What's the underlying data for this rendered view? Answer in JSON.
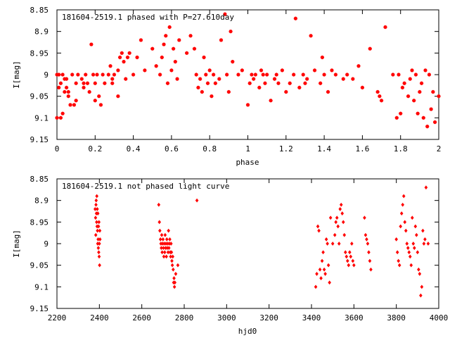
{
  "chart_data": [
    {
      "type": "scatter",
      "title": "181604-2519.1 phased with P=27.610day",
      "xlabel": "phase",
      "ylabel": "I[mag]",
      "xlim": [
        0,
        2
      ],
      "ylim": [
        8.85,
        9.15
      ],
      "y_inverted": true,
      "xticks": [
        "0",
        "0.2",
        "0.4",
        "0.6",
        "0.8",
        "1",
        "1.2",
        "1.4",
        "1.6",
        "1.8",
        "2"
      ],
      "yticks": [
        "8.85",
        "8.9",
        "8.95",
        "9",
        "9.05",
        "9.1",
        "9.15"
      ],
      "marker": "asterisk",
      "color": "#ff0000",
      "series": [
        {
          "x": [
            0.0,
            0.0,
            0.01,
            0.01,
            0.02,
            0.02,
            0.03,
            0.03,
            0.04,
            0.04,
            0.05,
            0.05,
            0.06,
            0.06,
            0.07,
            0.08,
            0.09,
            0.1,
            0.1,
            0.11,
            0.13,
            0.14,
            0.14,
            0.15,
            0.16,
            0.17,
            0.18,
            0.19,
            0.2,
            0.2,
            0.21,
            0.22,
            0.23,
            0.24,
            0.25,
            0.27,
            0.28,
            0.29,
            0.29,
            0.3,
            0.32,
            0.32,
            0.33,
            0.34,
            0.35,
            0.36,
            0.37,
            0.38,
            0.4,
            0.42,
            0.44,
            0.46,
            0.5,
            0.52,
            0.54,
            0.55,
            0.56,
            0.57,
            0.58,
            0.59,
            0.6,
            0.61,
            0.62,
            0.63,
            0.64,
            0.68,
            0.7,
            0.72,
            0.73,
            0.74,
            0.75,
            0.76,
            0.77,
            0.78,
            0.79,
            0.8,
            0.81,
            0.82,
            0.83,
            0.85,
            0.86,
            0.88,
            0.89,
            0.9,
            0.91,
            0.92,
            0.95,
            0.97,
            1.0,
            1.01,
            1.02,
            1.03,
            1.04,
            1.06,
            1.07,
            1.08,
            1.09,
            1.1,
            1.12,
            1.14,
            1.15,
            1.16,
            1.18,
            1.2,
            1.22,
            1.24,
            1.25,
            1.27,
            1.29,
            1.3,
            1.31,
            1.33,
            1.35,
            1.38,
            1.39,
            1.4,
            1.42,
            1.44,
            1.46,
            1.5,
            1.52,
            1.55,
            1.58,
            1.6,
            1.64,
            1.68,
            1.69,
            1.7,
            1.72,
            1.76,
            1.78,
            1.79,
            1.8,
            1.81,
            1.82,
            1.84,
            1.85,
            1.86,
            1.87,
            1.88,
            1.89,
            1.9,
            1.91,
            1.92,
            1.93,
            1.94,
            1.95,
            1.96,
            1.97,
            1.98,
            2.0
          ],
          "y": [
            9.0,
            9.1,
            9.0,
            9.03,
            9.1,
            9.02,
            9.09,
            9.0,
            9.01,
            9.04,
            9.01,
            9.03,
            9.04,
            9.05,
            9.07,
            9.0,
            9.07,
            9.02,
            9.06,
            9.0,
            9.01,
            9.03,
            9.02,
            9.0,
            9.02,
            9.04,
            8.93,
            9.0,
            9.02,
            9.06,
            9.0,
            9.05,
            9.07,
            9.0,
            9.02,
            9.0,
            8.98,
            9.01,
            9.02,
            9.0,
            9.05,
            8.99,
            8.96,
            8.95,
            8.97,
            9.01,
            8.96,
            8.95,
            9.0,
            8.96,
            8.92,
            8.99,
            8.94,
            8.98,
            9.0,
            8.96,
            8.93,
            8.91,
            9.02,
            8.89,
            8.99,
            8.94,
            8.97,
            9.01,
            8.92,
            8.95,
            8.91,
            8.94,
            9.0,
            9.03,
            9.01,
            9.04,
            8.96,
            9.0,
            9.02,
            8.99,
            9.05,
            9.0,
            9.02,
            9.01,
            8.92,
            8.86,
            9.0,
            9.04,
            8.9,
            8.97,
            9.0,
            8.99,
            9.07,
            9.02,
            9.0,
            9.01,
            9.0,
            9.03,
            8.99,
            9.0,
            9.02,
            9.0,
            9.06,
            9.01,
            9.0,
            9.02,
            8.99,
            9.04,
            9.02,
            9.0,
            8.87,
            9.03,
            9.0,
            9.02,
            9.01,
            8.91,
            8.99,
            9.02,
            8.96,
            9.0,
            9.04,
            8.99,
            9.0,
            9.01,
            9.0,
            9.01,
            8.98,
            9.03,
            8.94,
            9.04,
            9.05,
            9.06,
            8.89,
            9.0,
            9.1,
            9.0,
            9.09,
            9.03,
            9.02,
            9.05,
            9.01,
            8.99,
            9.06,
            9.0,
            9.09,
            9.04,
            9.02,
            9.1,
            8.99,
            9.12,
            9.0,
            9.08,
            9.04,
            9.11,
            9.05
          ]
        }
      ]
    },
    {
      "type": "scatter",
      "title": "181604-2519.1 not phased light curve",
      "xlabel": "hjd0",
      "ylabel": "I[mag]",
      "xlim": [
        2200,
        4000
      ],
      "ylim": [
        8.85,
        9.15
      ],
      "y_inverted": true,
      "xticks": [
        "2200",
        "2400",
        "2600",
        "2800",
        "3000",
        "3200",
        "3400",
        "3600",
        "3800",
        "4000"
      ],
      "yticks": [
        "8.85",
        "8.9",
        "8.95",
        "9",
        "9.05",
        "9.1",
        "9.15"
      ],
      "marker": "diamond",
      "color": "#ff0000",
      "series": [
        {
          "x": [
            2380,
            2382,
            2383,
            2384,
            2385,
            2386,
            2387,
            2388,
            2389,
            2390,
            2391,
            2392,
            2393,
            2394,
            2395,
            2396,
            2397,
            2398,
            2399,
            2400,
            2401,
            2402,
            2403,
            2680,
            2683,
            2685,
            2688,
            2690,
            2692,
            2694,
            2696,
            2698,
            2700,
            2702,
            2704,
            2706,
            2708,
            2710,
            2712,
            2714,
            2716,
            2718,
            2720,
            2722,
            2724,
            2726,
            2728,
            2730,
            2732,
            2734,
            2736,
            2738,
            2740,
            2742,
            2744,
            2746,
            2748,
            2750,
            2752,
            2754,
            2756,
            2760,
            2770,
            2860,
            3420,
            3425,
            3430,
            3435,
            3440,
            3445,
            3450,
            3455,
            3460,
            3465,
            3470,
            3475,
            3480,
            3485,
            3490,
            3500,
            3510,
            3515,
            3520,
            3525,
            3530,
            3535,
            3540,
            3545,
            3550,
            3555,
            3560,
            3565,
            3570,
            3575,
            3580,
            3585,
            3590,
            3595,
            3600,
            3650,
            3655,
            3660,
            3665,
            3670,
            3675,
            3680,
            3800,
            3805,
            3810,
            3815,
            3820,
            3825,
            3830,
            3835,
            3840,
            3845,
            3850,
            3855,
            3860,
            3865,
            3870,
            3875,
            3880,
            3885,
            3890,
            3895,
            3900,
            3905,
            3910,
            3915,
            3920,
            3925,
            3930,
            3935,
            3940,
            3950
          ],
          "y": [
            8.92,
            8.94,
            8.98,
            8.91,
            8.9,
            8.93,
            8.95,
            8.89,
            8.96,
            8.92,
            8.97,
            9.0,
            8.93,
            8.99,
            9.01,
            8.96,
            9.02,
            8.95,
            9.03,
            9.0,
            9.05,
            8.97,
            8.99,
            8.91,
            8.95,
            8.97,
            8.99,
            9.0,
            9.01,
            8.98,
            9.02,
            9.0,
            8.99,
            9.01,
            9.03,
            9.0,
            9.02,
            8.98,
            9.01,
            9.0,
            9.03,
            8.99,
            9.01,
            9.0,
            9.02,
            8.97,
            9.01,
            9.0,
            8.99,
            9.02,
            9.03,
            9.0,
            9.02,
            9.04,
            9.05,
            9.03,
            9.06,
            9.09,
            9.08,
            9.1,
            9.09,
            9.07,
            9.05,
            8.9,
            9.1,
            9.07,
            8.96,
            8.97,
            9.06,
            9.08,
            9.04,
            9.02,
            9.06,
            9.07,
            8.99,
            9.0,
            9.05,
            9.09,
            8.94,
            9.0,
            8.98,
            8.95,
            8.94,
            8.96,
            9.0,
            8.92,
            8.91,
            8.93,
            8.95,
            8.98,
            9.02,
            9.03,
            9.04,
            9.05,
            9.02,
            9.03,
            9.0,
            9.04,
            9.05,
            8.94,
            8.98,
            8.99,
            9.0,
            9.02,
            9.04,
            9.06,
            8.99,
            9.02,
            9.04,
            9.05,
            8.96,
            8.93,
            8.91,
            8.89,
            8.95,
            8.97,
            9.0,
            9.01,
            9.02,
            9.03,
            9.05,
            8.94,
            9.0,
            9.01,
            8.96,
            8.98,
            9.02,
            9.06,
            9.07,
            9.12,
            9.1,
            8.97,
            9.0,
            8.99,
            8.87,
            9.0
          ]
        }
      ]
    }
  ]
}
